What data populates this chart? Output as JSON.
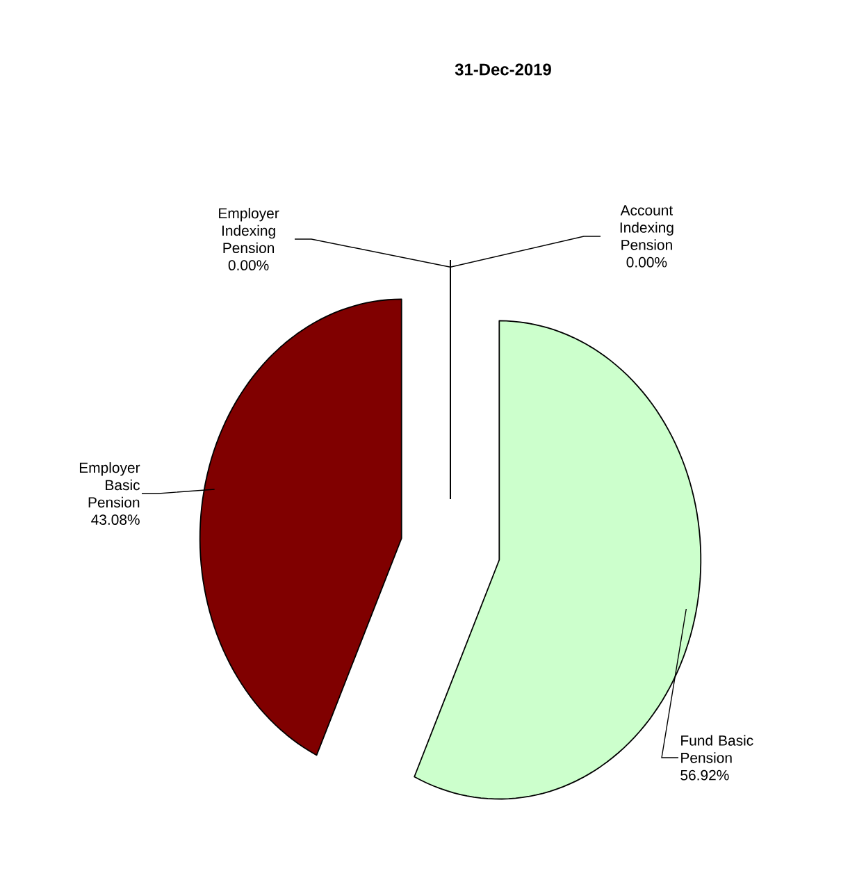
{
  "chart_data": {
    "type": "pie",
    "title": "31-Dec-2019",
    "categories": [
      "Account Indexing Pension",
      "Fund Basic Pension",
      "Employer Basic Pension",
      "Employer Indexing Pension"
    ],
    "values": [
      0,
      56.92,
      43.08,
      0
    ],
    "value_labels": [
      "0.00%",
      "56.92%",
      "43.08%",
      "0.00%"
    ],
    "colors": [
      "#ccffcc",
      "#ccffcc",
      "#800000",
      "#800000"
    ]
  }
}
